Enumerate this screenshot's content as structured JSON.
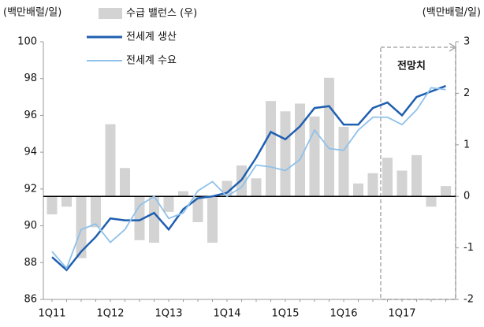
{
  "chart_data": {
    "type": "line",
    "y_label": "(백만배럴/일)",
    "y2_label": "(백만배럴/일)",
    "annotation": "전망치",
    "categories": [
      "1Q11",
      null,
      null,
      null,
      "1Q12",
      null,
      null,
      null,
      "1Q13",
      null,
      null,
      null,
      "1Q14",
      null,
      null,
      null,
      "1Q15",
      null,
      null,
      null,
      "1Q16",
      null,
      null,
      null,
      "1Q17",
      null,
      null,
      null
    ],
    "series": [
      {
        "name": "수급 밸런스 (우)",
        "type": "bar",
        "axis": "y2",
        "color": "#d3d3d3",
        "values": [
          -0.35,
          -0.2,
          -1.2,
          -0.6,
          1.4,
          0.55,
          -0.85,
          -0.9,
          -0.3,
          0.1,
          -0.5,
          -0.9,
          0.3,
          0.6,
          0.35,
          1.85,
          1.65,
          1.8,
          1.55,
          2.3,
          1.35,
          0.25,
          0.45,
          0.75,
          0.5,
          0.8,
          -0.2,
          0.2
        ]
      },
      {
        "name": "전세계 생산",
        "type": "line",
        "color": "#1f5fb0",
        "values": [
          88.3,
          87.6,
          88.6,
          89.4,
          90.4,
          90.3,
          90.3,
          90.7,
          89.8,
          90.9,
          91.5,
          91.6,
          91.8,
          92.5,
          93.7,
          95.1,
          94.7,
          95.4,
          96.4,
          96.5,
          95.5,
          95.5,
          96.4,
          96.7,
          96.0,
          97.0,
          97.3,
          97.6
        ]
      },
      {
        "name": "전세계 수요",
        "type": "line",
        "color": "#8fc1ea",
        "values": [
          88.6,
          87.7,
          89.8,
          90.1,
          89.1,
          89.8,
          91.1,
          91.6,
          90.4,
          90.7,
          91.9,
          92.4,
          91.6,
          92.1,
          93.3,
          93.2,
          93.0,
          93.6,
          95.2,
          94.2,
          94.1,
          95.2,
          95.9,
          95.9,
          95.5,
          96.3,
          97.5,
          97.4
        ]
      }
    ],
    "ylim": [
      86,
      100
    ],
    "yticks": [
      86,
      88,
      90,
      92,
      94,
      96,
      98,
      100
    ],
    "y2lim": [
      -2,
      3
    ],
    "y2ticks": [
      3,
      2,
      1,
      0,
      -1,
      -2
    ]
  }
}
